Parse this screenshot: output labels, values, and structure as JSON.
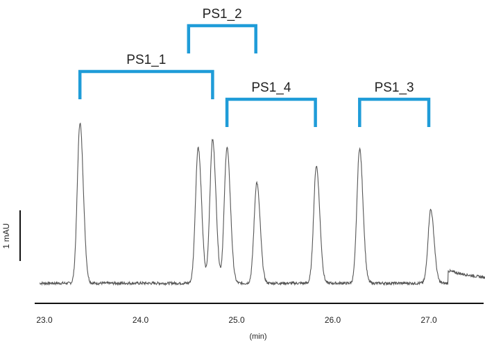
{
  "chart_data": {
    "type": "line",
    "title": "",
    "xlabel": "(min)",
    "xlim": [
      22.95,
      27.6
    ],
    "x_ticks": [
      "23.0",
      "24.0",
      "25.0",
      "26.0",
      "27.0"
    ],
    "y_scale_bar_label": "1 mAU",
    "series": [
      {
        "baseline": 0.06,
        "peaks": [
          {
            "rt": 23.37,
            "height": 2.37
          },
          {
            "rt": 24.6,
            "height": 2.02
          },
          {
            "rt": 24.75,
            "height": 2.13
          },
          {
            "rt": 24.9,
            "height": 2.02
          },
          {
            "rt": 25.21,
            "height": 1.51
          },
          {
            "rt": 25.83,
            "height": 1.75
          },
          {
            "rt": 26.28,
            "height": 2.0
          },
          {
            "rt": 27.02,
            "height": 1.12
          }
        ]
      }
    ],
    "groups": [
      {
        "label": "PS1_1",
        "start": 23.37,
        "end": 24.75
      },
      {
        "label": "PS1_2",
        "start": 24.5,
        "end": 25.2
      },
      {
        "label": "PS1_4",
        "start": 24.9,
        "end": 25.82
      },
      {
        "label": "PS1_3",
        "start": 26.28,
        "end": 27.0
      }
    ],
    "bracket_color": "#1f9cd8",
    "trace_color": "#555555"
  }
}
